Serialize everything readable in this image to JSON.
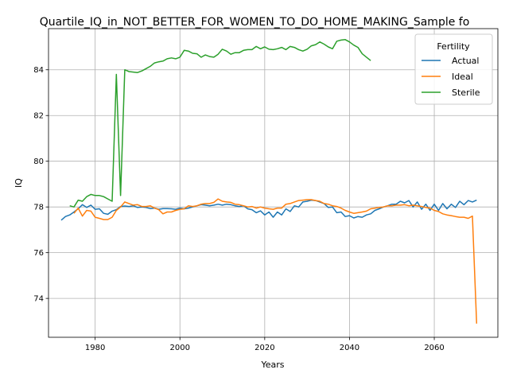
{
  "chart_data": {
    "type": "line",
    "title": "Quartile_IQ_in_NOT_BETTER_FOR_WOMEN_TO_DO_HOME_MAKING_Sample fo",
    "xlabel": "Years",
    "ylabel": "IQ",
    "xlim": [
      1969,
      2075
    ],
    "ylim": [
      72.3,
      85.8
    ],
    "x_ticks": [
      1980,
      2000,
      2020,
      2040,
      2060
    ],
    "y_ticks": [
      74,
      76,
      78,
      80,
      82,
      84
    ],
    "grid": true,
    "legend": {
      "title": "Fertility",
      "placement": "top-right"
    },
    "series": [
      {
        "name": "Actual",
        "color": "#1f77b4",
        "points": [
          [
            1972,
            77.42
          ],
          [
            1973,
            77.58
          ],
          [
            1974,
            77.65
          ],
          [
            1975,
            77.78
          ],
          [
            1976,
            77.92
          ],
          [
            1977,
            78.1
          ],
          [
            1978,
            77.98
          ],
          [
            1979,
            78.08
          ],
          [
            1980,
            77.9
          ],
          [
            1981,
            77.92
          ],
          [
            1982,
            77.72
          ],
          [
            1983,
            77.68
          ],
          [
            1984,
            77.82
          ],
          [
            1985,
            77.88
          ],
          [
            1986,
            78.02
          ],
          [
            1987,
            78.04
          ],
          [
            1988,
            78.02
          ],
          [
            1989,
            78.05
          ],
          [
            1990,
            77.98
          ],
          [
            1991,
            78.0
          ],
          [
            1992,
            77.98
          ],
          [
            1993,
            77.93
          ],
          [
            1994,
            77.95
          ],
          [
            1995,
            77.9
          ],
          [
            1996,
            77.93
          ],
          [
            1997,
            77.93
          ],
          [
            1998,
            77.92
          ],
          [
            1999,
            77.9
          ],
          [
            2000,
            77.95
          ],
          [
            2001,
            77.92
          ],
          [
            2002,
            77.95
          ],
          [
            2003,
            78.0
          ],
          [
            2004,
            78.05
          ],
          [
            2005,
            78.1
          ],
          [
            2006,
            78.08
          ],
          [
            2007,
            78.05
          ],
          [
            2008,
            78.08
          ],
          [
            2009,
            78.12
          ],
          [
            2010,
            78.08
          ],
          [
            2011,
            78.12
          ],
          [
            2012,
            78.1
          ],
          [
            2013,
            78.05
          ],
          [
            2014,
            78.02
          ],
          [
            2015,
            78.05
          ],
          [
            2016,
            77.92
          ],
          [
            2017,
            77.88
          ],
          [
            2018,
            77.75
          ],
          [
            2019,
            77.83
          ],
          [
            2020,
            77.65
          ],
          [
            2021,
            77.78
          ],
          [
            2022,
            77.55
          ],
          [
            2023,
            77.78
          ],
          [
            2024,
            77.65
          ],
          [
            2025,
            77.92
          ],
          [
            2026,
            77.8
          ],
          [
            2027,
            78.05
          ],
          [
            2028,
            78.0
          ],
          [
            2029,
            78.22
          ],
          [
            2030,
            78.25
          ],
          [
            2031,
            78.3
          ],
          [
            2032,
            78.28
          ],
          [
            2033,
            78.22
          ],
          [
            2034,
            78.15
          ],
          [
            2035,
            77.98
          ],
          [
            2036,
            78.0
          ],
          [
            2037,
            77.75
          ],
          [
            2038,
            77.78
          ],
          [
            2039,
            77.58
          ],
          [
            2040,
            77.62
          ],
          [
            2041,
            77.52
          ],
          [
            2042,
            77.58
          ],
          [
            2043,
            77.55
          ],
          [
            2044,
            77.65
          ],
          [
            2045,
            77.7
          ],
          [
            2046,
            77.85
          ],
          [
            2047,
            77.92
          ],
          [
            2048,
            78.0
          ],
          [
            2049,
            78.05
          ],
          [
            2050,
            78.12
          ],
          [
            2051,
            78.12
          ],
          [
            2052,
            78.25
          ],
          [
            2053,
            78.18
          ],
          [
            2054,
            78.28
          ],
          [
            2055,
            78.0
          ],
          [
            2056,
            78.22
          ],
          [
            2057,
            77.9
          ],
          [
            2058,
            78.12
          ],
          [
            2059,
            77.85
          ],
          [
            2060,
            78.12
          ],
          [
            2061,
            77.85
          ],
          [
            2062,
            78.15
          ],
          [
            2063,
            77.92
          ],
          [
            2064,
            78.12
          ],
          [
            2065,
            77.98
          ],
          [
            2066,
            78.25
          ],
          [
            2067,
            78.1
          ],
          [
            2068,
            78.28
          ],
          [
            2069,
            78.22
          ],
          [
            2070,
            78.3
          ]
        ]
      },
      {
        "name": "Ideal",
        "color": "#ff7f0e",
        "points": [
          [
            1975,
            77.72
          ],
          [
            1976,
            77.95
          ],
          [
            1977,
            77.6
          ],
          [
            1978,
            77.85
          ],
          [
            1979,
            77.82
          ],
          [
            1980,
            77.55
          ],
          [
            1981,
            77.5
          ],
          [
            1982,
            77.45
          ],
          [
            1983,
            77.45
          ],
          [
            1984,
            77.55
          ],
          [
            1985,
            77.85
          ],
          [
            1986,
            78.0
          ],
          [
            1987,
            78.22
          ],
          [
            1988,
            78.15
          ],
          [
            1989,
            78.08
          ],
          [
            1990,
            78.1
          ],
          [
            1991,
            78.02
          ],
          [
            1992,
            78.02
          ],
          [
            1993,
            78.05
          ],
          [
            1994,
            77.95
          ],
          [
            1995,
            77.88
          ],
          [
            1996,
            77.7
          ],
          [
            1997,
            77.78
          ],
          [
            1998,
            77.78
          ],
          [
            1999,
            77.85
          ],
          [
            2000,
            77.9
          ],
          [
            2001,
            77.92
          ],
          [
            2002,
            78.05
          ],
          [
            2003,
            78.02
          ],
          [
            2004,
            78.05
          ],
          [
            2005,
            78.12
          ],
          [
            2006,
            78.15
          ],
          [
            2007,
            78.15
          ],
          [
            2008,
            78.2
          ],
          [
            2009,
            78.35
          ],
          [
            2010,
            78.25
          ],
          [
            2011,
            78.22
          ],
          [
            2012,
            78.2
          ],
          [
            2013,
            78.12
          ],
          [
            2014,
            78.1
          ],
          [
            2015,
            78.05
          ],
          [
            2016,
            78.0
          ],
          [
            2017,
            78.02
          ],
          [
            2018,
            77.95
          ],
          [
            2019,
            78.0
          ],
          [
            2020,
            77.95
          ],
          [
            2021,
            77.92
          ],
          [
            2022,
            77.9
          ],
          [
            2023,
            77.95
          ],
          [
            2024,
            77.95
          ],
          [
            2025,
            78.12
          ],
          [
            2026,
            78.15
          ],
          [
            2027,
            78.22
          ],
          [
            2028,
            78.28
          ],
          [
            2029,
            78.3
          ],
          [
            2030,
            78.32
          ],
          [
            2031,
            78.32
          ],
          [
            2032,
            78.28
          ],
          [
            2033,
            78.25
          ],
          [
            2034,
            78.15
          ],
          [
            2035,
            78.12
          ],
          [
            2036,
            78.05
          ],
          [
            2037,
            78.02
          ],
          [
            2038,
            77.95
          ],
          [
            2039,
            77.85
          ],
          [
            2040,
            77.78
          ],
          [
            2041,
            77.72
          ],
          [
            2042,
            77.75
          ],
          [
            2043,
            77.78
          ],
          [
            2044,
            77.82
          ],
          [
            2045,
            77.92
          ],
          [
            2046,
            77.95
          ],
          [
            2047,
            77.98
          ],
          [
            2048,
            78.0
          ],
          [
            2049,
            78.05
          ],
          [
            2050,
            78.05
          ],
          [
            2051,
            78.08
          ],
          [
            2052,
            78.08
          ],
          [
            2053,
            78.1
          ],
          [
            2054,
            78.05
          ],
          [
            2055,
            78.08
          ],
          [
            2056,
            78.05
          ],
          [
            2057,
            78.02
          ],
          [
            2058,
            77.98
          ],
          [
            2059,
            77.95
          ],
          [
            2060,
            77.85
          ],
          [
            2061,
            77.8
          ],
          [
            2062,
            77.7
          ],
          [
            2063,
            77.65
          ],
          [
            2064,
            77.62
          ],
          [
            2065,
            77.58
          ],
          [
            2066,
            77.55
          ],
          [
            2067,
            77.55
          ],
          [
            2068,
            77.5
          ],
          [
            2069,
            77.6
          ],
          [
            2070,
            72.9
          ]
        ]
      },
      {
        "name": "Sterile",
        "color": "#2ca02c",
        "points": [
          [
            1974,
            78.05
          ],
          [
            1975,
            78.0
          ],
          [
            1976,
            78.3
          ],
          [
            1977,
            78.25
          ],
          [
            1978,
            78.45
          ],
          [
            1979,
            78.55
          ],
          [
            1980,
            78.5
          ],
          [
            1981,
            78.5
          ],
          [
            1982,
            78.45
          ],
          [
            1983,
            78.35
          ],
          [
            1984,
            78.25
          ],
          [
            1985,
            83.8
          ],
          [
            1986,
            78.5
          ],
          [
            1987,
            84.0
          ],
          [
            1988,
            83.92
          ],
          [
            1989,
            83.9
          ],
          [
            1990,
            83.88
          ],
          [
            1991,
            83.95
          ],
          [
            1992,
            84.05
          ],
          [
            1993,
            84.15
          ],
          [
            1994,
            84.3
          ],
          [
            1995,
            84.35
          ],
          [
            1996,
            84.38
          ],
          [
            1997,
            84.48
          ],
          [
            1998,
            84.52
          ],
          [
            1999,
            84.48
          ],
          [
            2000,
            84.55
          ],
          [
            2001,
            84.85
          ],
          [
            2002,
            84.82
          ],
          [
            2003,
            84.72
          ],
          [
            2004,
            84.7
          ],
          [
            2005,
            84.55
          ],
          [
            2006,
            84.65
          ],
          [
            2007,
            84.58
          ],
          [
            2008,
            84.55
          ],
          [
            2009,
            84.68
          ],
          [
            2010,
            84.9
          ],
          [
            2011,
            84.82
          ],
          [
            2012,
            84.68
          ],
          [
            2013,
            84.75
          ],
          [
            2014,
            84.75
          ],
          [
            2015,
            84.85
          ],
          [
            2016,
            84.88
          ],
          [
            2017,
            84.88
          ],
          [
            2018,
            85.02
          ],
          [
            2019,
            84.92
          ],
          [
            2020,
            85.0
          ],
          [
            2021,
            84.9
          ],
          [
            2022,
            84.88
          ],
          [
            2023,
            84.92
          ],
          [
            2024,
            84.98
          ],
          [
            2025,
            84.88
          ],
          [
            2026,
            85.02
          ],
          [
            2027,
            84.98
          ],
          [
            2028,
            84.88
          ],
          [
            2029,
            84.82
          ],
          [
            2030,
            84.9
          ],
          [
            2031,
            85.05
          ],
          [
            2032,
            85.1
          ],
          [
            2033,
            85.22
          ],
          [
            2034,
            85.12
          ],
          [
            2035,
            85.0
          ],
          [
            2036,
            84.92
          ],
          [
            2037,
            85.25
          ],
          [
            2038,
            85.3
          ],
          [
            2039,
            85.32
          ],
          [
            2040,
            85.22
          ],
          [
            2041,
            85.08
          ],
          [
            2042,
            84.98
          ],
          [
            2043,
            84.7
          ],
          [
            2044,
            84.55
          ],
          [
            2045,
            84.4
          ]
        ]
      }
    ]
  }
}
